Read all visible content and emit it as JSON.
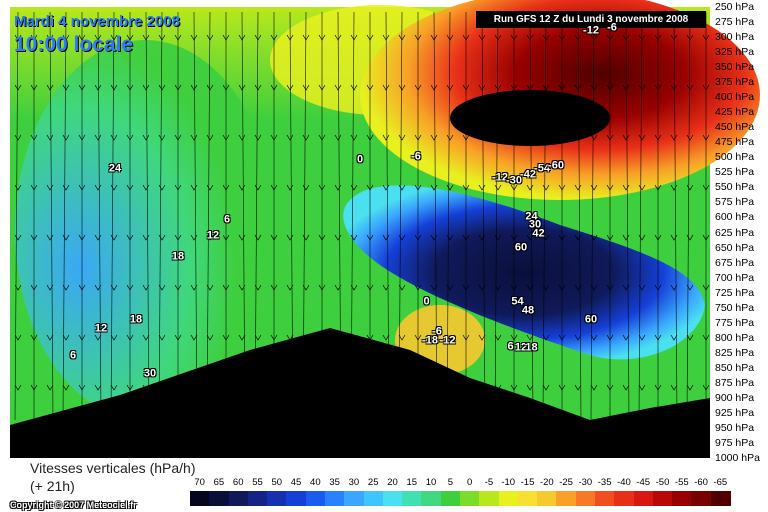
{
  "header": {
    "date_title": "Mardi 4 novembre 2008",
    "time_title": "10:00 locale",
    "run_banner": "Run GFS 12 Z du Lundi 3 novembre 2008"
  },
  "footer": {
    "ylabel": "Vitesses verticales (hPa/h)",
    "lead_time": "(+ 21h)",
    "copyright": "Copyright © 2007 Meteociel.fr"
  },
  "colors": {
    "terrain": "#000000",
    "strong_ascent": "#0a0f5a",
    "strong_descent": "#4a0000",
    "neutral": "#3ecf3e"
  },
  "chart_data": {
    "type": "heatmap",
    "title": "Vitesses verticales (hPa/h)",
    "subtitle": "Run GFS 12 Z du Lundi 3 novembre 2008",
    "ylabel": "",
    "y_axis": {
      "unit": "hPa",
      "tick_labels": [
        "250 hPa",
        "275 hPa",
        "300 hPa",
        "325 hPa",
        "350 hPa",
        "375 hPa",
        "400 hPa",
        "425 hPa",
        "450 hPa",
        "475 hPa",
        "500 hPa",
        "525 hPa",
        "550 hPa",
        "575 hPa",
        "600 hPa",
        "625 hPa",
        "650 hPa",
        "675 hPa",
        "700 hPa",
        "725 hPa",
        "750 hPa",
        "775 hPa",
        "800 hPa",
        "825 hPa",
        "850 hPa",
        "875 hPa",
        "900 hPa",
        "925 hPa",
        "950 hPa",
        "975 hPa",
        "1000 hPa"
      ],
      "range": [
        1000,
        250
      ]
    },
    "colorbar": {
      "values": [
        70,
        65,
        60,
        55,
        50,
        45,
        40,
        35,
        30,
        25,
        20,
        15,
        10,
        5,
        0,
        -5,
        -10,
        -15,
        -20,
        -25,
        -30,
        -35,
        -40,
        -45,
        -50,
        -55,
        -60,
        -65
      ],
      "colors": [
        "#05051e",
        "#0a0f3a",
        "#101a5a",
        "#142486",
        "#1530b0",
        "#1540d8",
        "#1a5cf0",
        "#2a80ff",
        "#3aa6ff",
        "#3fc4ff",
        "#4ae0f0",
        "#40e0b0",
        "#40d880",
        "#3ecf3e",
        "#7ddc2a",
        "#b8e81c",
        "#e8f020",
        "#f8e030",
        "#f8c830",
        "#f8a028",
        "#f87828",
        "#f05020",
        "#e83018",
        "#d81810",
        "#b80808",
        "#980000",
        "#780000",
        "#500000"
      ]
    },
    "contour_labels": [
      {
        "text": "24",
        "p": 520,
        "xf": 0.15
      },
      {
        "text": "6",
        "p": 605,
        "xf": 0.31
      },
      {
        "text": "12",
        "p": 630,
        "xf": 0.29
      },
      {
        "text": "18",
        "p": 665,
        "xf": 0.24
      },
      {
        "text": "18",
        "p": 770,
        "xf": 0.18
      },
      {
        "text": "12",
        "p": 785,
        "xf": 0.13
      },
      {
        "text": "6",
        "p": 830,
        "xf": 0.09
      },
      {
        "text": "30",
        "p": 860,
        "xf": 0.2
      },
      {
        "text": "0",
        "p": 505,
        "xf": 0.5
      },
      {
        "text": "-6",
        "p": 500,
        "xf": 0.58
      },
      {
        "text": "-12",
        "p": 290,
        "xf": 0.83
      },
      {
        "text": "-6",
        "p": 285,
        "xf": 0.86
      },
      {
        "text": "-12",
        "p": 535,
        "xf": 0.7
      },
      {
        "text": "-30",
        "p": 540,
        "xf": 0.72
      },
      {
        "text": "-42",
        "p": 530,
        "xf": 0.74
      },
      {
        "text": "-54",
        "p": 520,
        "xf": 0.76
      },
      {
        "text": "-60",
        "p": 515,
        "xf": 0.78
      },
      {
        "text": "24",
        "p": 600,
        "xf": 0.745
      },
      {
        "text": "30",
        "p": 612,
        "xf": 0.75
      },
      {
        "text": "42",
        "p": 628,
        "xf": 0.755
      },
      {
        "text": "60",
        "p": 650,
        "xf": 0.73
      },
      {
        "text": "54",
        "p": 740,
        "xf": 0.725
      },
      {
        "text": "48",
        "p": 755,
        "xf": 0.74
      },
      {
        "text": "60",
        "p": 770,
        "xf": 0.83
      },
      {
        "text": "0",
        "p": 740,
        "xf": 0.595
      },
      {
        "text": "-6",
        "p": 790,
        "xf": 0.61
      },
      {
        "text": "-18",
        "p": 805,
        "xf": 0.6
      },
      {
        "text": "-12",
        "p": 805,
        "xf": 0.625
      },
      {
        "text": "6",
        "p": 815,
        "xf": 0.715
      },
      {
        "text": "12",
        "p": 817,
        "xf": 0.73
      },
      {
        "text": "18",
        "p": 817,
        "xf": 0.745
      }
    ]
  }
}
